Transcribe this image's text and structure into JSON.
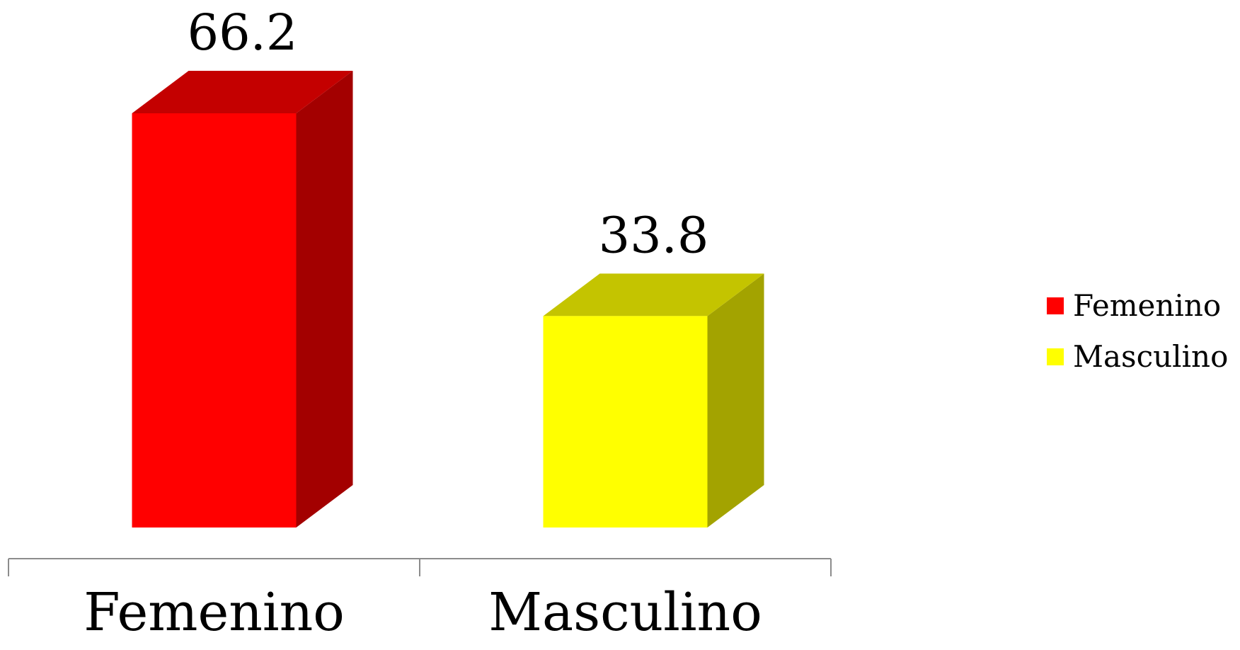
{
  "chart_data": {
    "type": "bar",
    "style": "3d-column",
    "categories": [
      "Femenino",
      "Masculino"
    ],
    "values": [
      66.2,
      33.8
    ],
    "value_labels": [
      "66.2",
      "33.8"
    ],
    "colors": [
      "#FF0000",
      "#FFFF00"
    ],
    "legend": {
      "position": "right",
      "entries": [
        {
          "label": "Femenino",
          "color": "#FF0000"
        },
        {
          "label": "Masculino",
          "color": "#FFFF00"
        }
      ]
    },
    "title": "",
    "xlabel": "",
    "ylabel": "",
    "ylim": [
      0,
      66.2
    ],
    "grid": false
  }
}
